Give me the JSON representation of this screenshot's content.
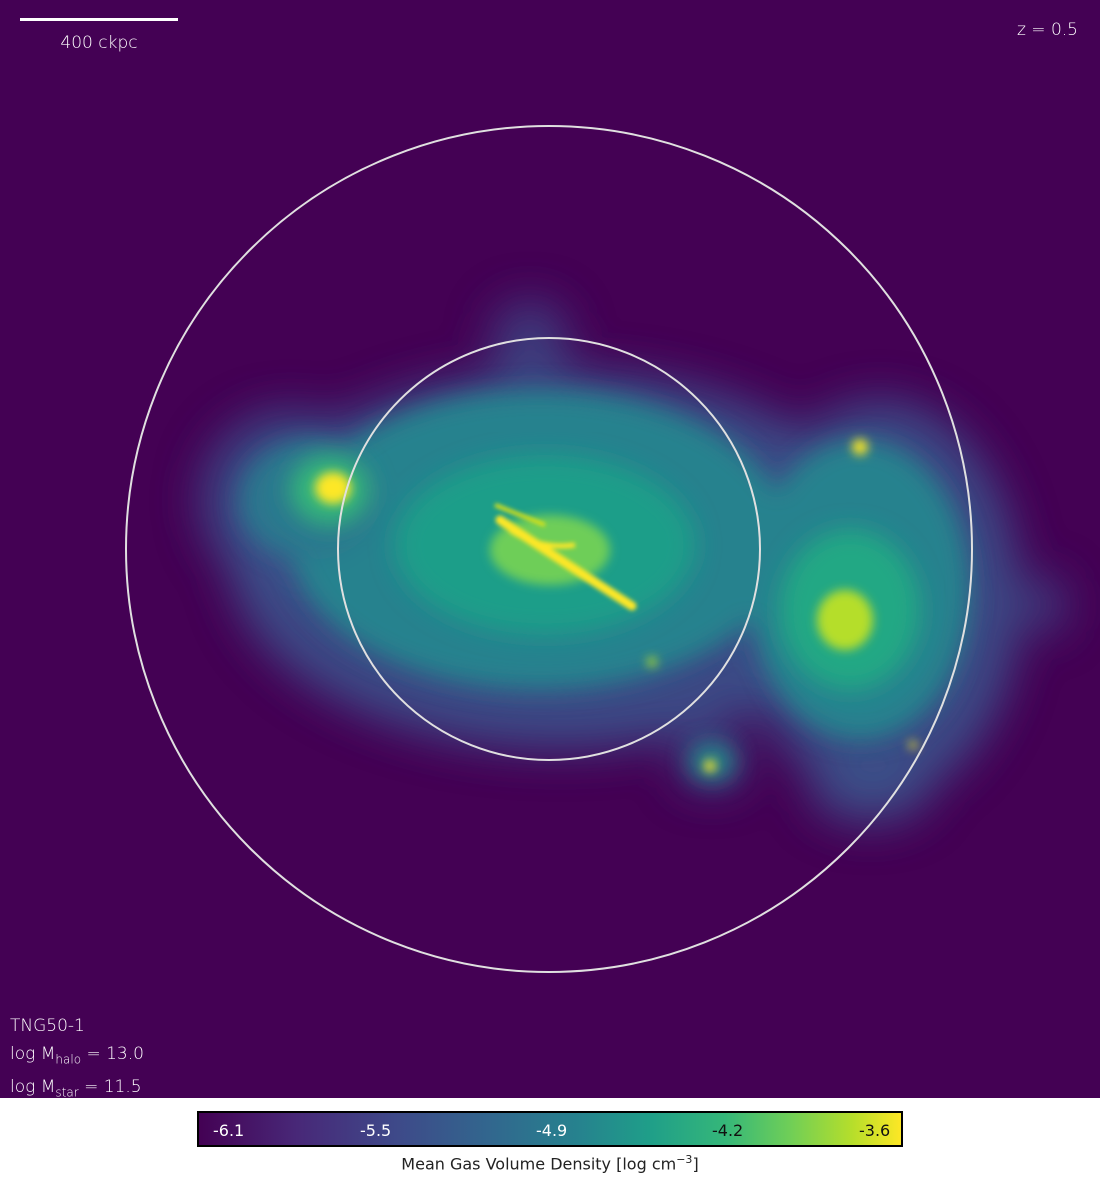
{
  "scalebar": {
    "label": "400 ckpc"
  },
  "redshift": "z = 0.5",
  "info": {
    "simulation": "TNG50-1",
    "halo_prefix": "log M",
    "halo_sub": "halo",
    "halo_value": "= 13.0",
    "star_prefix": "log M",
    "star_sub": "star",
    "star_value": "= 11.5"
  },
  "colorbar": {
    "ticks": [
      "-6.1",
      "-5.5",
      "-4.9",
      "-4.2",
      "-3.6"
    ],
    "label_main": "Mean Gas Volume Density [log cm",
    "label_exp": "−3",
    "label_end": "]",
    "colormap": "viridis",
    "colors": [
      "#440154",
      "#31688e",
      "#21918c",
      "#35b779",
      "#fde725"
    ]
  }
}
